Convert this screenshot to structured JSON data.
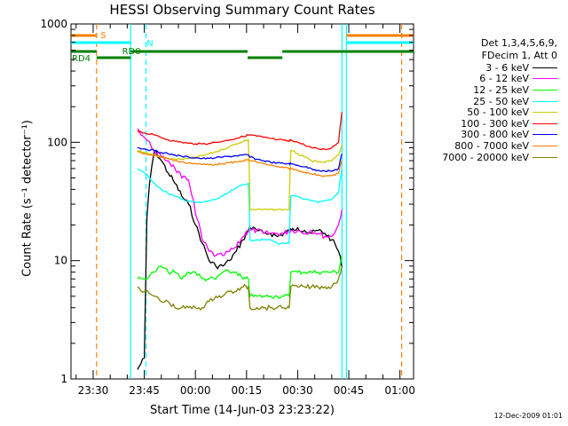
{
  "title": "HESSI Observing Summary Count Rates",
  "xlabel": "Start Time (14-Jun-03 23:23:22)",
  "ylabel": "Count Rate (s⁻¹ detector⁻¹)",
  "footer_date": "12-Dec-2009 01:01",
  "legend_header": [
    "Det 1,3,4,5,6,9,",
    "FDecim 1, Att 0"
  ],
  "chart_data": {
    "type": "line",
    "title": "HESSI Observing Summary Count Rates",
    "xlabel": "Start Time (14-Jun-03 23:23:22)",
    "ylabel": "Count Rate (s⁻¹ detector⁻¹)",
    "yscale": "log",
    "ylim": [
      1,
      1000
    ],
    "y_ticks": [
      "1",
      "10",
      "100",
      "1000"
    ],
    "x_ticks": [
      "23:30",
      "23:45",
      "00:00",
      "00:15",
      "00:30",
      "00:45",
      "01:00"
    ],
    "xlim_minutes_after_2330": [
      -6.5,
      94
    ],
    "grid": false,
    "legend_position": "right",
    "flag_labels": [
      "S",
      "N",
      "RD0",
      "RD4"
    ],
    "x_minutes_after_2330": [
      13,
      15,
      18,
      20,
      22,
      24,
      26,
      28,
      30,
      32,
      34,
      36,
      38,
      40,
      42,
      44,
      45.5,
      46,
      48,
      50,
      52,
      54,
      56,
      57.5,
      58,
      60,
      62,
      64,
      66,
      68,
      70,
      72,
      73
    ],
    "series": [
      {
        "name": "3 - 6 keV",
        "color": "#000000",
        "values": [
          1.2,
          1.5,
          85,
          70,
          55,
          45,
          35,
          30,
          20,
          14,
          10,
          9,
          9,
          10,
          12,
          15,
          18,
          19,
          18,
          17,
          17,
          16,
          17,
          18,
          18,
          19,
          18,
          17,
          18,
          17,
          15,
          12,
          9
        ]
      },
      {
        "name": "6 - 12 keV",
        "color": "#ff00ff",
        "values": [
          130,
          110,
          85,
          75,
          70,
          60,
          50,
          48,
          25,
          15,
          12,
          11,
          11,
          12,
          13,
          16,
          18,
          18,
          18,
          17,
          17,
          17,
          17,
          18,
          18,
          18,
          17,
          18,
          17,
          16,
          16,
          20,
          27
        ]
      },
      {
        "name": "12 - 25 keV",
        "color": "#00ff00",
        "values": [
          7,
          7,
          8,
          9,
          8,
          8,
          7,
          8,
          8,
          7,
          7,
          7,
          8,
          8,
          8,
          7,
          7,
          5,
          5,
          5,
          5,
          5,
          5,
          5,
          8,
          8,
          8,
          8,
          8,
          8,
          8,
          8,
          11
        ]
      },
      {
        "name": "25 - 50 keV",
        "color": "#00ffff",
        "values": [
          60,
          55,
          45,
          40,
          37,
          35,
          33,
          32,
          31,
          31,
          32,
          33,
          35,
          38,
          41,
          44,
          45,
          15,
          15,
          15,
          15,
          14,
          14,
          14,
          35,
          35,
          33,
          32,
          31,
          32,
          33,
          38,
          60
        ]
      },
      {
        "name": "50 - 100 keV",
        "color": "#cccc00",
        "values": [
          85,
          82,
          78,
          75,
          73,
          72,
          72,
          73,
          75,
          77,
          80,
          83,
          87,
          92,
          97,
          102,
          105,
          27,
          27,
          27,
          27,
          27,
          27,
          27,
          85,
          80,
          75,
          70,
          68,
          68,
          70,
          78,
          95
        ]
      },
      {
        "name": "100 - 300 keV",
        "color": "#ff0000",
        "values": [
          125,
          120,
          115,
          110,
          105,
          102,
          100,
          98,
          97,
          97,
          98,
          100,
          102,
          105,
          108,
          112,
          115,
          115,
          113,
          110,
          108,
          105,
          104,
          102,
          105,
          100,
          95,
          90,
          88,
          87,
          90,
          100,
          180
        ]
      },
      {
        "name": "300 - 800 keV",
        "color": "#0000ff",
        "values": [
          90,
          88,
          85,
          82,
          80,
          78,
          76,
          75,
          74,
          73,
          73,
          74,
          75,
          76,
          77,
          78,
          78,
          75,
          72,
          70,
          68,
          67,
          66,
          66,
          66,
          64,
          62,
          60,
          58,
          57,
          57,
          60,
          80
        ]
      },
      {
        "name": "800 - 7000 keV",
        "color": "#ff8000",
        "values": [
          83,
          80,
          78,
          75,
          73,
          70,
          68,
          67,
          66,
          65,
          65,
          65,
          66,
          67,
          68,
          70,
          71,
          70,
          68,
          66,
          64,
          62,
          61,
          60,
          60,
          58,
          56,
          54,
          53,
          52,
          52,
          55,
          70
        ]
      },
      {
        "name": "7000 - 20000 keV",
        "color": "#808000",
        "values": [
          6,
          5.5,
          5,
          4.5,
          4.5,
          4,
          4,
          4,
          4,
          4,
          4.5,
          5,
          5,
          5.5,
          5.5,
          6,
          6,
          4,
          4,
          4,
          4,
          4,
          4,
          4,
          6,
          6,
          6,
          6,
          6,
          6,
          6,
          7,
          9
        ]
      }
    ]
  }
}
